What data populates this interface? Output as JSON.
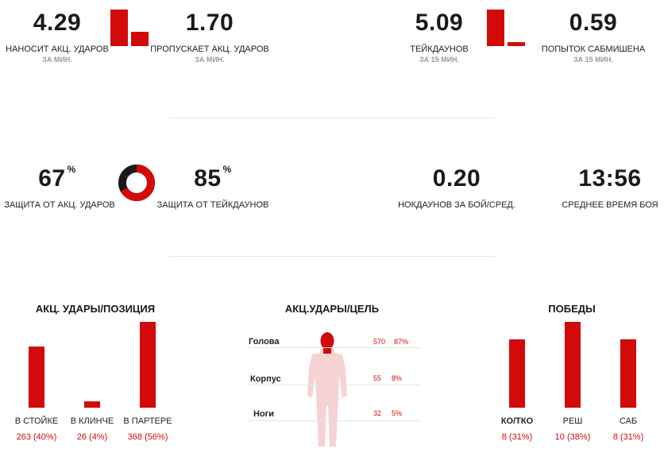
{
  "striking": {
    "landed": {
      "value": "4.29",
      "label": "НАНОСИТ АКЦ. УДАРОВ",
      "sub": "ЗА МИН."
    },
    "absorbed": {
      "value": "1.70",
      "label": "ПРОПУСКАЕТ АКЦ. УДАРОВ",
      "sub": "ЗА МИН."
    },
    "compare": {
      "landed": 4.29,
      "absorbed": 1.7
    }
  },
  "grappling": {
    "takedowns": {
      "value": "5.09",
      "label": "ТЕЙКДАУНОВ",
      "sub": "ЗА 15 МИН."
    },
    "submissions": {
      "value": "0.59",
      "label": "ПОПЫТОК САБМИШЕНА",
      "sub": "ЗА 15 МИН."
    },
    "compare": {
      "takedowns": 5.09,
      "submissions": 0.59
    }
  },
  "defense": {
    "strike": {
      "value": "67",
      "unit": "%",
      "label": "ЗАЩИТА ОТ АКЦ. УДАРОВ"
    },
    "takedown": {
      "value": "85",
      "unit": "%",
      "label": "ЗАЩИТА ОТ ТЕЙКДАУНОВ"
    },
    "ring_fraction": 0.67
  },
  "knockdowns": {
    "value": "0.20",
    "label": "НОКДАУНОВ ЗА БОЙ/СРЕД."
  },
  "fight_time": {
    "value": "13:56",
    "label": "СРЕДНЕЕ ВРЕМЯ БОЯ"
  },
  "colors": {
    "accent": "#d20a0a",
    "dark": "#1a1a1a",
    "muted": "#9a9a9a",
    "figure": "#f6d2d2"
  },
  "position_chart": {
    "title": "АКЦ. УДАРЫ/ПОЗИЦИЯ",
    "items": [
      {
        "label": "В СТОЙКЕ",
        "value_text": "263 (40%)"
      },
      {
        "label": "В КЛИНЧЕ",
        "value_text": "26 (4%)"
      },
      {
        "label": "В ПАРТЕРЕ",
        "value_text": "368 (56%)"
      }
    ]
  },
  "target_chart": {
    "title": "АКЦ.УДАРЫ/ЦЕЛЬ",
    "rows": [
      {
        "label": "Голова",
        "count": "570",
        "pct": "87%"
      },
      {
        "label": "Корпус",
        "count": "55",
        "pct": "8%"
      },
      {
        "label": "Ноги",
        "count": "32",
        "pct": "5%"
      }
    ]
  },
  "wins_chart": {
    "title": "ПОБЕДЫ",
    "items": [
      {
        "label": "КО/ТКО",
        "value_text": "8 (31%)"
      },
      {
        "label": "РЕШ",
        "value_text": "10 (38%)"
      },
      {
        "label": "САБ",
        "value_text": "8 (31%)"
      }
    ]
  },
  "chart_data": [
    {
      "type": "bar",
      "title": "АКЦ. УДАРЫ/ПОЗИЦИЯ",
      "categories": [
        "В СТОЙКЕ",
        "В КЛИНЧЕ",
        "В ПАРТЕРЕ"
      ],
      "values": [
        263,
        26,
        368
      ]
    },
    {
      "type": "bar",
      "title": "ПОБЕДЫ",
      "categories": [
        "КО/ТКО",
        "РЕШ",
        "САБ"
      ],
      "values": [
        8,
        10,
        8
      ]
    }
  ]
}
